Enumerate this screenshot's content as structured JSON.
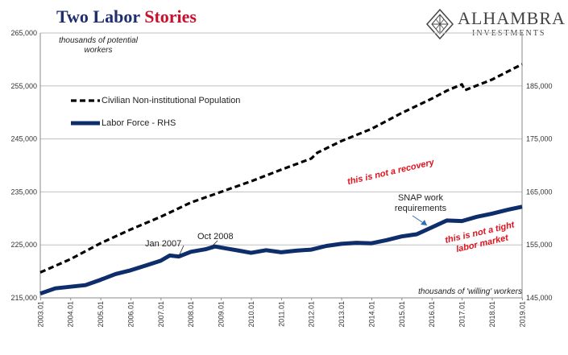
{
  "header": {
    "title_part1": "Two Labor",
    "title_part2": "Stories",
    "logo_name": "ALHAMBRA",
    "logo_sub": "INVESTMENTS"
  },
  "notes": {
    "left_units": "thousands of potential workers",
    "right_units": "thousands of 'willing' workers"
  },
  "annotations": {
    "jan2007": "Jan 2007",
    "oct2008": "Oct 2008",
    "snap": "SNAP work requirements",
    "not_recovery": "this is not a recovery",
    "not_tight": "this is not a tight labor market"
  },
  "colors": {
    "population": "#000000",
    "labor": "#0d2d6b",
    "grid": "#bfbfbf",
    "title_blue": "#1f2f6e",
    "title_red": "#c8102e",
    "annotation_red": "#e0111b"
  },
  "chart_data": {
    "type": "line",
    "x_ticks": [
      "2003.01",
      "2004.01",
      "2005.01",
      "2006.01",
      "2007.01",
      "2008.01",
      "2009.01",
      "2010.01",
      "2011.01",
      "2012.01",
      "2013.01",
      "2014.01",
      "2015.01",
      "2016.01",
      "2017.01",
      "2018.01",
      "2019.01"
    ],
    "y_left": {
      "min": 215000,
      "max": 265000,
      "ticks": [
        "215,000",
        "225,000",
        "235,000",
        "245,000",
        "255,000",
        "265,000"
      ]
    },
    "y_right": {
      "min": 145000,
      "max": 195000,
      "ticks": [
        "145,000",
        "155,000",
        "165,000",
        "175,000",
        "185,000"
      ]
    },
    "grid": true,
    "legend_position": "upper-left",
    "series": [
      {
        "name": "Civilian Non-institutional Population",
        "axis": "left",
        "style": "dashed",
        "x": [
          2003.0,
          2004.0,
          2005.0,
          2006.0,
          2007.0,
          2008.0,
          2009.0,
          2010.0,
          2011.0,
          2012.0,
          2012.2,
          2013.0,
          2014.0,
          2015.0,
          2016.0,
          2016.5,
          2017.0,
          2017.1,
          2018.0,
          2019.0
        ],
        "y": [
          219800,
          222300,
          225300,
          227900,
          230300,
          233000,
          235000,
          237000,
          239200,
          241300,
          242400,
          244600,
          246900,
          249900,
          252600,
          254100,
          255300,
          254200,
          256200,
          259100
        ]
      },
      {
        "name": "Labor Force - RHS",
        "axis": "right",
        "style": "solid",
        "x": [
          2003.0,
          2003.5,
          2004.0,
          2004.5,
          2005.0,
          2005.5,
          2006.0,
          2006.5,
          2007.0,
          2007.3,
          2007.6,
          2008.0,
          2008.5,
          2008.8,
          2009.2,
          2009.6,
          2010.0,
          2010.5,
          2011.0,
          2011.5,
          2012.0,
          2012.5,
          2013.0,
          2013.5,
          2014.0,
          2014.5,
          2015.0,
          2015.5,
          2016.0,
          2016.5,
          2017.0,
          2017.5,
          2018.0,
          2018.5,
          2019.0
        ],
        "y": [
          145800,
          146800,
          147100,
          147400,
          148400,
          149500,
          150200,
          151100,
          152000,
          153000,
          152800,
          153700,
          154200,
          154700,
          154300,
          153900,
          153500,
          154000,
          153600,
          153900,
          154100,
          154800,
          155200,
          155400,
          155300,
          155900,
          156600,
          157000,
          158300,
          159600,
          159500,
          160300,
          160900,
          161600,
          162200
        ]
      }
    ]
  }
}
